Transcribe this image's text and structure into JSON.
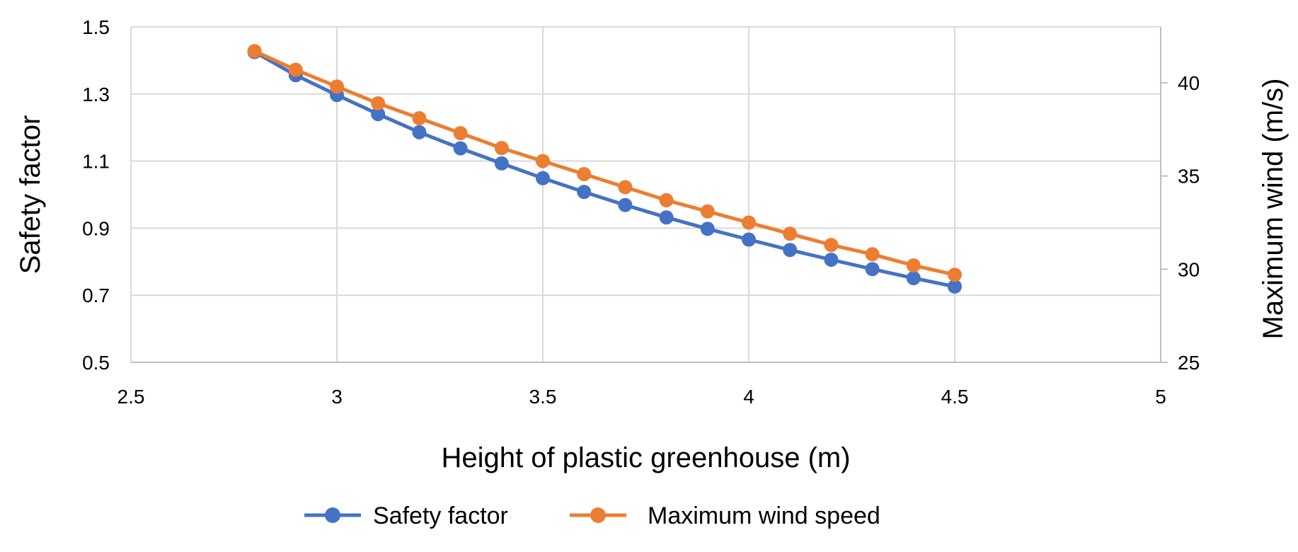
{
  "chart_data": {
    "type": "line",
    "xlabel": "Height of plastic greenhouse (m)",
    "ylabel": "Safety factor",
    "y2label": "Maximum wind (m/s)",
    "xlim": [
      2.5,
      5
    ],
    "ylim": [
      0.5,
      1.5
    ],
    "y2lim": [
      25,
      43
    ],
    "x_ticks": [
      "2.5",
      "3",
      "3.5",
      "4",
      "4.5",
      "5"
    ],
    "y_ticks": [
      "0.5",
      "0.7",
      "0.9",
      "1.1",
      "1.3",
      "1.5"
    ],
    "y2_ticks": [
      "25",
      "30",
      "35",
      "40"
    ],
    "grid": true,
    "legend_position": "bottom",
    "x": [
      2.8,
      2.9,
      3.0,
      3.1,
      3.2,
      3.3,
      3.4,
      3.5,
      3.6,
      3.7,
      3.8,
      3.9,
      4.0,
      4.1,
      4.2,
      4.3,
      4.4,
      4.5
    ],
    "series": [
      {
        "name": "Safety factor",
        "axis": "left",
        "color": "#4472c4",
        "values": [
          1.425,
          1.356,
          1.297,
          1.24,
          1.186,
          1.138,
          1.093,
          1.049,
          1.008,
          0.969,
          0.932,
          0.898,
          0.866,
          0.835,
          0.806,
          0.778,
          0.751,
          0.726
        ]
      },
      {
        "name": "Maximum wind speed",
        "axis": "right",
        "color": "#ed7d31",
        "values": [
          41.7,
          40.7,
          39.8,
          38.9,
          38.1,
          37.3,
          36.5,
          35.8,
          35.1,
          34.4,
          33.7,
          33.1,
          32.5,
          31.9,
          31.3,
          30.8,
          30.2,
          29.7
        ]
      }
    ]
  }
}
